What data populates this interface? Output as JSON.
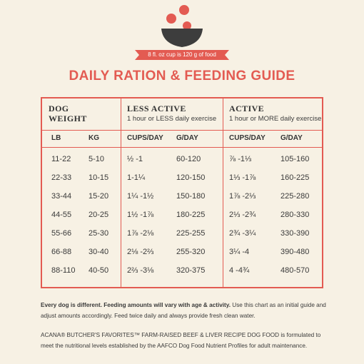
{
  "ribbon_text": "8 fl. oz cup is 120 g of food",
  "title": "DAILY RATION & FEEDING GUIDE",
  "colors": {
    "accent": "#e35b52",
    "bowl": "#3d3d3d",
    "background": "#f7f1e4"
  },
  "header": {
    "dog_weight_line1": "DOG",
    "dog_weight_line2": "WEIGHT",
    "less_active": "LESS ACTIVE",
    "less_active_sub": "1 hour or LESS daily exercise",
    "active": "ACTIVE",
    "active_sub": "1 hour or MORE daily exercise"
  },
  "columns": [
    "LB",
    "KG",
    "CUPS/DAY",
    "G/DAY",
    "CUPS/DAY",
    "G/DAY"
  ],
  "rows": [
    [
      "11-22",
      "5-10",
      "½ -1",
      "60-120",
      "⅞ -1⅓",
      "105-160"
    ],
    [
      "22-33",
      "10-15",
      "1-1¼",
      "120-150",
      "1⅓ -1⅞",
      "160-225"
    ],
    [
      "33-44",
      "15-20",
      "1¼ -1½",
      "150-180",
      "1⅞ -2⅓",
      "225-280"
    ],
    [
      "44-55",
      "20-25",
      "1½ -1⅞",
      "180-225",
      "2⅓ -2¾",
      "280-330"
    ],
    [
      "55-66",
      "25-30",
      "1⅞ -2⅛",
      "225-255",
      "2¾ -3¼",
      "330-390"
    ],
    [
      "66-88",
      "30-40",
      "2⅛ -2⅔",
      "255-320",
      "3¼ -4",
      "390-480"
    ],
    [
      "88-110",
      "40-50",
      "2⅔ -3⅛",
      "320-375",
      "4 -4¾",
      "480-570"
    ]
  ],
  "note_bold": "Every dog is different. Feeding amounts will vary with age & activity.",
  "note_rest": " Use this chart as an initial guide and adjust amounts accordingly. Feed twice daily and always provide fresh clean water.",
  "footer": "ACANA® BUTCHER'S FAVORITES™ FARM-RAISED BEEF & LIVER RECIPE DOG FOOD is formulated to meet the nutritional levels established by the AAFCO Dog Food Nutrient Profiles for adult maintenance."
}
